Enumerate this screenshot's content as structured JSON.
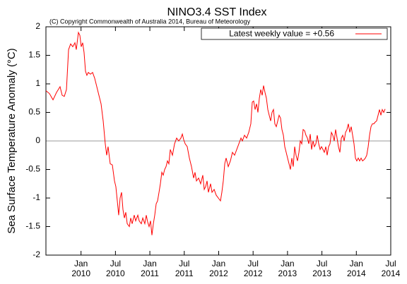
{
  "chart_data": {
    "type": "line",
    "title": "NINO3.4 SST Index",
    "subtitle": "(C) Copyright Commonwealth of Australia 2014, Bureau of Meteorology",
    "y_label": "Sea Surface Temperature Anomaly (°C)",
    "xlim": [
      2009.49,
      2014.5
    ],
    "ylim": [
      -2,
      2
    ],
    "yticks": [
      -2,
      -1.5,
      -1,
      -0.5,
      0,
      0.5,
      1,
      1.5,
      2
    ],
    "xticks": [
      {
        "value": 2010,
        "label": "Jan 2010"
      },
      {
        "value": 2010.5,
        "label": "Jul 2010"
      },
      {
        "value": 2011,
        "label": "Jan 2011"
      },
      {
        "value": 2011.5,
        "label": "Jul 2011"
      },
      {
        "value": 2012,
        "label": "Jan 2012"
      },
      {
        "value": 2012.5,
        "label": "Jul 2012"
      },
      {
        "value": 2013,
        "label": "Jan 2013"
      },
      {
        "value": 2013.5,
        "label": "Jul 2013"
      },
      {
        "value": 2014,
        "label": "Jan 2014"
      },
      {
        "value": 2014.5,
        "label": "Jul 2014"
      }
    ],
    "zero_line": true,
    "legend": "upper right",
    "x": [
      2009.49,
      2009.541,
      2009.593,
      2009.644,
      2009.695,
      2009.726,
      2009.757,
      2009.788,
      2009.819,
      2009.849,
      2009.88,
      2009.911,
      2009.931,
      2009.962,
      2009.983,
      2010.003,
      2010.024,
      2010.044,
      2010.065,
      2010.085,
      2010.106,
      2010.137,
      2010.168,
      2010.198,
      2010.229,
      2010.26,
      2010.291,
      2010.322,
      2010.352,
      2010.373,
      2010.393,
      2010.424,
      2010.455,
      2010.486,
      2010.506,
      2010.527,
      2010.547,
      2010.568,
      2010.589,
      2010.609,
      2010.63,
      2010.65,
      2010.671,
      2010.702,
      2010.722,
      2010.743,
      2010.773,
      2010.794,
      2010.825,
      2010.845,
      2010.876,
      2010.897,
      2010.927,
      2010.948,
      2010.968,
      2010.989,
      2011.01,
      2011.03,
      2011.051,
      2011.071,
      2011.092,
      2011.112,
      2011.133,
      2011.153,
      2011.174,
      2011.194,
      2011.215,
      2011.235,
      2011.256,
      2011.276,
      2011.297,
      2011.328,
      2011.359,
      2011.389,
      2011.42,
      2011.451,
      2011.472,
      2011.492,
      2011.513,
      2011.543,
      2011.574,
      2011.605,
      2011.636,
      2011.656,
      2011.677,
      2011.708,
      2011.738,
      2011.769,
      2011.79,
      2011.81,
      2011.831,
      2011.851,
      2011.882,
      2011.903,
      2011.934,
      2011.964,
      2011.995,
      2012.026,
      2012.046,
      2012.067,
      2012.088,
      2012.108,
      2012.139,
      2012.17,
      2012.2,
      2012.231,
      2012.262,
      2012.293,
      2012.324,
      2012.344,
      2012.375,
      2012.406,
      2012.437,
      2012.467,
      2012.488,
      2012.508,
      2012.529,
      2012.55,
      2012.57,
      2012.591,
      2012.611,
      2012.632,
      2012.652,
      2012.673,
      2012.693,
      2012.714,
      2012.734,
      2012.755,
      2012.775,
      2012.796,
      2012.816,
      2012.837,
      2012.858,
      2012.878,
      2012.899,
      2012.919,
      2012.94,
      2012.96,
      2012.981,
      2013.001,
      2013.022,
      2013.042,
      2013.063,
      2013.083,
      2013.104,
      2013.124,
      2013.145,
      2013.166,
      2013.186,
      2013.207,
      2013.227,
      2013.248,
      2013.268,
      2013.289,
      2013.309,
      2013.33,
      2013.35,
      2013.371,
      2013.391,
      2013.412,
      2013.432,
      2013.453,
      2013.474,
      2013.494,
      2013.515,
      2013.535,
      2013.556,
      2013.576,
      2013.597,
      2013.617,
      2013.638,
      2013.658,
      2013.679,
      2013.699,
      2013.72,
      2013.74,
      2013.761,
      2013.782,
      2013.802,
      2013.823,
      2013.843,
      2013.864,
      2013.884,
      2013.905,
      2013.925,
      2013.946,
      2013.966,
      2013.987,
      2014.007,
      2014.028,
      2014.048,
      2014.069,
      2014.09,
      2014.11,
      2014.131,
      2014.151,
      2014.172,
      2014.192,
      2014.213,
      2014.233,
      2014.254,
      2014.274,
      2014.295,
      2014.316,
      2014.336,
      2014.357,
      2014.377,
      2014.398,
      2014.418
    ],
    "series": [
      {
        "name": "Latest weekly value = +0.56",
        "color": "#ff0000",
        "values": [
          0.88,
          0.83,
          0.72,
          0.85,
          0.95,
          0.8,
          0.78,
          0.9,
          1.6,
          1.7,
          1.65,
          1.72,
          1.6,
          1.9,
          1.85,
          1.65,
          1.72,
          1.55,
          1.22,
          1.15,
          1.2,
          1.17,
          1.2,
          1.1,
          0.95,
          0.8,
          0.65,
          0.35,
          -0.05,
          -0.25,
          -0.1,
          -0.4,
          -0.42,
          -0.7,
          -0.8,
          -1.05,
          -1.3,
          -1.0,
          -0.9,
          -1.2,
          -1.35,
          -1.25,
          -1.45,
          -1.5,
          -1.35,
          -1.45,
          -1.3,
          -1.4,
          -1.3,
          -1.4,
          -1.45,
          -1.35,
          -1.45,
          -1.3,
          -1.42,
          -1.5,
          -1.4,
          -1.65,
          -1.45,
          -1.3,
          -1.1,
          -1.05,
          -0.9,
          -0.75,
          -0.55,
          -0.6,
          -0.5,
          -0.45,
          -0.35,
          -0.4,
          -0.15,
          -0.25,
          -0.05,
          0.05,
          0.0,
          0.05,
          0.12,
          0.02,
          -0.05,
          -0.1,
          -0.3,
          -0.45,
          -0.65,
          -0.55,
          -0.7,
          -0.65,
          -0.75,
          -0.6,
          -0.85,
          -0.8,
          -0.7,
          -0.9,
          -0.75,
          -0.9,
          -0.85,
          -0.95,
          -1.0,
          -1.05,
          -0.9,
          -0.7,
          -0.4,
          -0.3,
          -0.45,
          -0.35,
          -0.2,
          -0.25,
          -0.15,
          -0.05,
          0.05,
          0.0,
          0.1,
          0.05,
          0.15,
          0.3,
          0.68,
          0.7,
          0.55,
          0.65,
          0.5,
          0.75,
          0.9,
          0.8,
          0.97,
          0.85,
          0.75,
          0.55,
          0.45,
          0.35,
          0.5,
          0.55,
          0.3,
          0.25,
          0.35,
          0.45,
          0.4,
          0.2,
          0.1,
          -0.1,
          -0.2,
          -0.3,
          -0.4,
          -0.5,
          -0.3,
          -0.45,
          -0.1,
          -0.25,
          -0.35,
          -0.2,
          0.0,
          -0.05,
          0.2,
          0.18,
          0.1,
          0.05,
          -0.05,
          0.12,
          -0.15,
          0.0,
          -0.1,
          -0.05,
          0.1,
          -0.05,
          -0.15,
          -0.1,
          -0.15,
          -0.2,
          -0.1,
          -0.25,
          -0.1,
          -0.05,
          0.15,
          0.1,
          0.0,
          0.2,
          0.05,
          -0.1,
          -0.2,
          0.05,
          0.1,
          0.0,
          0.15,
          0.2,
          0.3,
          0.15,
          0.25,
          0.1,
          -0.05,
          -0.3,
          -0.35,
          -0.3,
          -0.35,
          -0.3,
          -0.35,
          -0.33,
          -0.3,
          -0.25,
          -0.1,
          0.1,
          0.25,
          0.3,
          0.3,
          0.33,
          0.35,
          0.45,
          0.55,
          0.45,
          0.55,
          0.5,
          0.56
        ]
      }
    ]
  }
}
